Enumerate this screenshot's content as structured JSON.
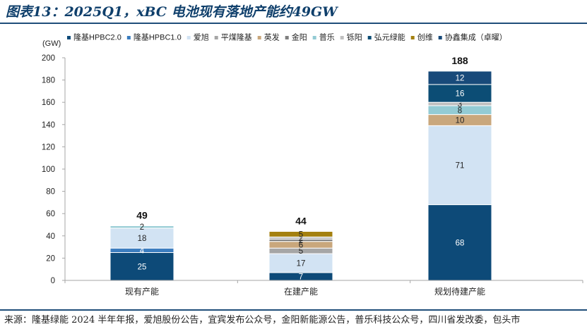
{
  "title": "图表13：2025Q1，xBC 电池现有落地产能约49GW",
  "source": "来源：隆基绿能 2024 半年年报，爱旭股份公告，宜宾发布公众号，金阳新能源公告，普乐科技公众号，四川省发改委，包头市",
  "chart_data": {
    "type": "bar",
    "stacked": true,
    "unit_label": "(GW)",
    "ylim": [
      0,
      200
    ],
    "yticks": [
      0,
      20,
      40,
      60,
      80,
      100,
      120,
      140,
      160,
      180,
      200
    ],
    "grid": false,
    "legend_position": "top",
    "categories": [
      "现有产能",
      "在建产能",
      "规划待建产能"
    ],
    "totals": [
      49,
      44,
      188
    ],
    "series": [
      {
        "name": "隆基HPBC2.0",
        "color": "#0d4a78",
        "text_color": "#ffffff",
        "values": [
          25,
          7,
          68
        ]
      },
      {
        "name": "隆基HPBC1.0",
        "color": "#3b7dbf",
        "text_color": "#ffffff",
        "values": [
          4,
          0,
          0
        ]
      },
      {
        "name": "爱旭",
        "color": "#d2e3f3",
        "text_color": "#222222",
        "values": [
          18,
          17,
          71
        ]
      },
      {
        "name": "平煤隆基",
        "color": "#a6a6a6",
        "text_color": "#222222",
        "values": [
          0,
          5,
          0
        ]
      },
      {
        "name": "英发",
        "color": "#c9a77c",
        "text_color": "#222222",
        "values": [
          0,
          6,
          10
        ]
      },
      {
        "name": "金阳",
        "color": "#7f7f7f",
        "text_color": "#222222",
        "values": [
          0,
          2,
          0
        ]
      },
      {
        "name": "普乐",
        "color": "#93cbd4",
        "text_color": "#222222",
        "values": [
          2,
          0,
          8
        ]
      },
      {
        "name": "铄阳",
        "color": "#bfbfbf",
        "text_color": "#222222",
        "values": [
          0,
          2,
          3
        ]
      },
      {
        "name": "弘元绿能",
        "color": "#0c4d75",
        "text_color": "#ffffff",
        "values": [
          0,
          0,
          16
        ]
      },
      {
        "name": "创维",
        "color": "#a4800f",
        "text_color": "#222222",
        "values": [
          0,
          5,
          0
        ]
      },
      {
        "name": "协鑫集成（卓曜）",
        "color": "#184a7a",
        "text_color": "#ffffff",
        "values": [
          0,
          0,
          12
        ]
      }
    ]
  }
}
